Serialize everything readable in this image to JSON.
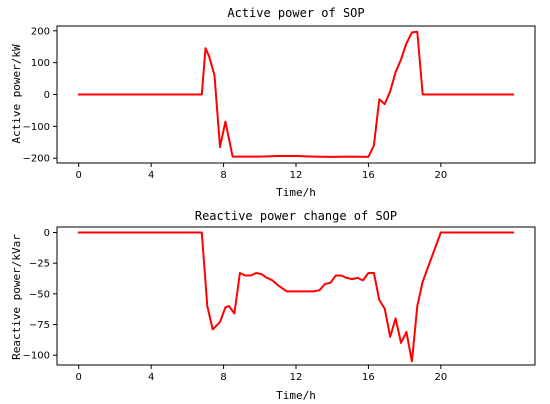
{
  "colors": {
    "series": "#ff0000",
    "axis": "#000000",
    "background": "#ffffff"
  },
  "chart_data": [
    {
      "type": "line",
      "title": "Active power of SOP",
      "xlabel": "Time/h",
      "ylabel": "Active power/kW",
      "xlim": [
        -1.2,
        25.2
      ],
      "ylim": [
        -215,
        215
      ],
      "xticks": [
        0,
        4,
        8,
        12,
        16,
        20
      ],
      "yticks": [
        200,
        100,
        0,
        -100,
        -200
      ],
      "grid": false,
      "series": [
        {
          "x": [
            0,
            6.8,
            7,
            7.2,
            7.5,
            7.8,
            8.1,
            8.5,
            9,
            10,
            11,
            12,
            13,
            14,
            15,
            16,
            16.3,
            16.6,
            16.9,
            17.2,
            17.5,
            17.8,
            18.1,
            18.4,
            18.7,
            19,
            20,
            21,
            22,
            23,
            24
          ],
          "y": [
            0,
            0,
            145,
            120,
            60,
            -165,
            -85,
            -195,
            -195,
            -195,
            -193,
            -193,
            -195,
            -196,
            -195,
            -196,
            -160,
            -15,
            -30,
            10,
            70,
            110,
            160,
            195,
            197,
            0,
            0,
            0,
            0,
            0,
            0
          ]
        }
      ]
    },
    {
      "type": "line",
      "title": "Reactive power change of SOP",
      "xlabel": "Time/h",
      "ylabel": "Reactive power/kVar",
      "xlim": [
        -1.2,
        25.2
      ],
      "ylim": [
        -108,
        4.5
      ],
      "xticks": [
        0,
        4,
        8,
        12,
        16,
        20
      ],
      "yticks": [
        0,
        -25,
        -50,
        -75,
        -100
      ],
      "grid": false,
      "series": [
        {
          "x": [
            0,
            6.8,
            7.1,
            7.4,
            7.8,
            8.1,
            8.3,
            8.6,
            8.9,
            9.2,
            9.5,
            9.8,
            10.1,
            10.4,
            10.7,
            11,
            11.5,
            12,
            12.5,
            13,
            13.3,
            13.6,
            13.9,
            14.2,
            14.5,
            14.8,
            15.1,
            15.4,
            15.7,
            16,
            16.3,
            16.6,
            16.9,
            17.2,
            17.5,
            17.8,
            18.1,
            18.4,
            18.7,
            19,
            20,
            21,
            22,
            23,
            24
          ],
          "y": [
            0,
            0,
            -60,
            -79,
            -73,
            -61,
            -60,
            -66,
            -33,
            -35,
            -35,
            -33,
            -34,
            -37,
            -39,
            -43,
            -48,
            -48,
            -48,
            -48,
            -47,
            -42,
            -41,
            -35,
            -35,
            -37,
            -38,
            -37,
            -39,
            -33,
            -33,
            -55,
            -62,
            -85,
            -70,
            -90,
            -81,
            -105,
            -60,
            -40,
            0,
            0,
            0,
            0,
            0
          ]
        }
      ]
    }
  ]
}
